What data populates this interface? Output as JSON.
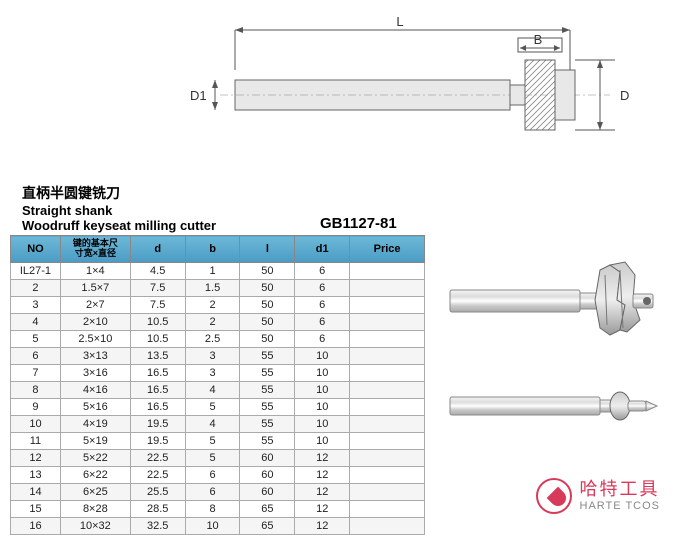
{
  "title": {
    "cn": "直柄半圆键铣刀",
    "en1": "Straight shank",
    "en2": "Woodruff keyseat milling cutter",
    "standard": "GB1127-81"
  },
  "diagram": {
    "labels": {
      "L": "L",
      "B": "B",
      "D1": "D1",
      "D": "D"
    }
  },
  "table": {
    "headers": {
      "no": "NO",
      "keysize": "键的基本尺",
      "keysize_sub": "寸宽×直径",
      "d": "d",
      "b": "b",
      "l": "l",
      "d1": "d1",
      "price": "Price"
    },
    "rows": [
      {
        "no": "IL27-1",
        "ks": "1×4",
        "d": "4.5",
        "b": "1",
        "l": "50",
        "d1": "6",
        "price": ""
      },
      {
        "no": "2",
        "ks": "1.5×7",
        "d": "7.5",
        "b": "1.5",
        "l": "50",
        "d1": "6",
        "price": ""
      },
      {
        "no": "3",
        "ks": "2×7",
        "d": "7.5",
        "b": "2",
        "l": "50",
        "d1": "6",
        "price": ""
      },
      {
        "no": "4",
        "ks": "2×10",
        "d": "10.5",
        "b": "2",
        "l": "50",
        "d1": "6",
        "price": ""
      },
      {
        "no": "5",
        "ks": "2.5×10",
        "d": "10.5",
        "b": "2.5",
        "l": "50",
        "d1": "6",
        "price": ""
      },
      {
        "no": "6",
        "ks": "3×13",
        "d": "13.5",
        "b": "3",
        "l": "55",
        "d1": "10",
        "price": ""
      },
      {
        "no": "7",
        "ks": "3×16",
        "d": "16.5",
        "b": "3",
        "l": "55",
        "d1": "10",
        "price": ""
      },
      {
        "no": "8",
        "ks": "4×16",
        "d": "16.5",
        "b": "4",
        "l": "55",
        "d1": "10",
        "price": ""
      },
      {
        "no": "9",
        "ks": "5×16",
        "d": "16.5",
        "b": "5",
        "l": "55",
        "d1": "10",
        "price": ""
      },
      {
        "no": "10",
        "ks": "4×19",
        "d": "19.5",
        "b": "4",
        "l": "55",
        "d1": "10",
        "price": ""
      },
      {
        "no": "11",
        "ks": "5×19",
        "d": "19.5",
        "b": "5",
        "l": "55",
        "d1": "10",
        "price": ""
      },
      {
        "no": "12",
        "ks": "5×22",
        "d": "22.5",
        "b": "5",
        "l": "60",
        "d1": "12",
        "price": ""
      },
      {
        "no": "13",
        "ks": "6×22",
        "d": "22.5",
        "b": "6",
        "l": "60",
        "d1": "12",
        "price": ""
      },
      {
        "no": "14",
        "ks": "6×25",
        "d": "25.5",
        "b": "6",
        "l": "60",
        "d1": "12",
        "price": ""
      },
      {
        "no": "15",
        "ks": "8×28",
        "d": "28.5",
        "b": "8",
        "l": "65",
        "d1": "12",
        "price": ""
      },
      {
        "no": "16",
        "ks": "10×32",
        "d": "32.5",
        "b": "10",
        "l": "65",
        "d1": "12",
        "price": ""
      }
    ],
    "col_widths": [
      "50px",
      "70px",
      "55px",
      "55px",
      "55px",
      "55px",
      "75px"
    ]
  },
  "logo": {
    "cn": "哈特工具",
    "en": "HARTE TCOS"
  },
  "colors": {
    "header_grad_top": "#6db8d8",
    "header_grad_bot": "#4a9bc4",
    "logo_accent": "#d83a5a",
    "border": "#aaaaaa"
  }
}
